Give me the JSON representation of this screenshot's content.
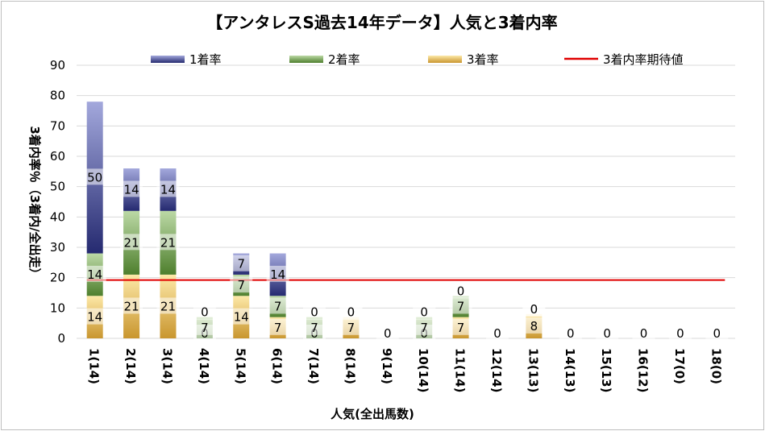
{
  "chart_data": {
    "type": "bar",
    "stacked": true,
    "title": "【アンタレスS過去14年データ】人気と3着内率",
    "xlabel": "人気(全出馬数)",
    "ylabel": "3着内率％（3着内/全出走）",
    "ylim": [
      0,
      90
    ],
    "yticks": [
      0,
      10,
      20,
      30,
      40,
      50,
      60,
      70,
      80,
      90
    ],
    "grid": true,
    "legend_position": "top",
    "categories": [
      "1(14)",
      "2(14)",
      "3(14)",
      "4(14)",
      "5(14)",
      "6(14)",
      "7(14)",
      "8(14)",
      "9(14)",
      "10(14)",
      "11(14)",
      "12(14)",
      "13(13)",
      "14(13)",
      "15(13)",
      "16(12)",
      "17(0)",
      "18(0)"
    ],
    "series": [
      {
        "name": "3着率",
        "color": "#c9962f",
        "values": [
          14,
          21,
          21,
          0,
          14,
          7,
          0,
          7,
          0,
          0,
          7,
          0,
          8,
          0,
          0,
          0,
          0,
          0
        ],
        "labels": [
          "14",
          "21",
          "21",
          "0",
          "14",
          "7",
          "0",
          "7",
          "0",
          "0",
          "7",
          "0",
          "8",
          "0",
          "0",
          "0",
          "0",
          "0"
        ]
      },
      {
        "name": "2着率",
        "color": "#6a9e45",
        "values": [
          14,
          21,
          21,
          7,
          7,
          7,
          7,
          0,
          0,
          7,
          7,
          0,
          0,
          0,
          0,
          0,
          0,
          0
        ],
        "labels": [
          "14",
          "21",
          "21",
          "7",
          "7",
          "7",
          "7",
          "0",
          "",
          "7",
          "7",
          "",
          "0",
          "",
          "",
          "",
          "",
          ""
        ]
      },
      {
        "name": "1着率",
        "color": "#3a3f88",
        "values": [
          50,
          14,
          14,
          0,
          7,
          14,
          0,
          0,
          0,
          0,
          0,
          0,
          0,
          0,
          0,
          0,
          0,
          0
        ],
        "labels": [
          "50",
          "14",
          "14",
          "0",
          "7",
          "14",
          "0",
          "0",
          "",
          "0",
          "0",
          "",
          "0",
          "",
          "",
          "",
          "",
          ""
        ]
      }
    ],
    "reference_line": {
      "name": "3着内率期待値",
      "value": 19.2,
      "color": "#e00000"
    },
    "legend": [
      "1着率",
      "2着率",
      "3着率",
      "3着内率期待値"
    ]
  }
}
